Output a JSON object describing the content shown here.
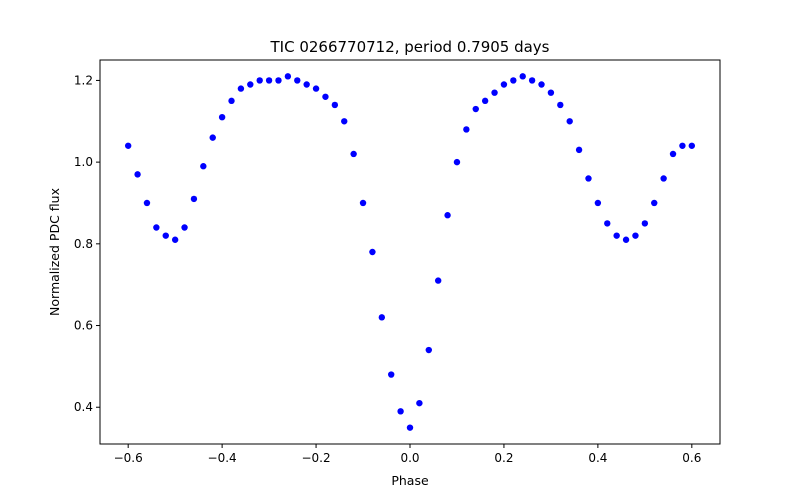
{
  "chart_data": {
    "type": "scatter",
    "title": "TIC 0266770712, period 0.7905 days",
    "xlabel": "Phase",
    "ylabel": "Normalized PDC flux",
    "xlim": [
      -0.66,
      0.66
    ],
    "ylim": [
      0.31,
      1.25
    ],
    "xticks": [
      -0.6,
      -0.4,
      -0.2,
      0.0,
      0.2,
      0.4,
      0.6
    ],
    "xtick_labels": [
      "−0.6",
      "−0.4",
      "−0.2",
      "0.0",
      "0.2",
      "0.4",
      "0.6"
    ],
    "yticks": [
      0.4,
      0.6,
      0.8,
      1.0,
      1.2
    ],
    "ytick_labels": [
      "0.4",
      "0.6",
      "0.8",
      "1.0",
      "1.2"
    ],
    "grid": false,
    "marker_color": "#0000ff",
    "series": [
      {
        "phase": [
          -0.6,
          -0.58,
          -0.56,
          -0.54,
          -0.52,
          -0.5,
          -0.48,
          -0.46,
          -0.44,
          -0.42,
          -0.4,
          -0.38,
          -0.36,
          -0.34,
          -0.32,
          -0.3,
          -0.28,
          -0.26,
          -0.24,
          -0.22,
          -0.2,
          -0.18,
          -0.16,
          -0.14,
          -0.12,
          -0.1,
          -0.08,
          -0.06,
          -0.04,
          -0.02,
          0.0,
          0.02,
          0.04,
          0.06,
          0.08,
          0.1,
          0.12,
          0.14,
          0.16,
          0.18,
          0.2,
          0.22,
          0.24,
          0.26,
          0.28,
          0.3,
          0.32,
          0.34,
          0.36,
          0.38,
          0.4,
          0.42,
          0.44,
          0.46,
          0.48,
          0.5,
          0.52,
          0.54,
          0.56,
          0.58,
          0.6
        ],
        "flux": [
          1.04,
          0.97,
          0.9,
          0.84,
          0.82,
          0.81,
          0.84,
          0.91,
          0.99,
          1.06,
          1.11,
          1.15,
          1.18,
          1.19,
          1.2,
          1.2,
          1.2,
          1.21,
          1.2,
          1.19,
          1.18,
          1.16,
          1.14,
          1.1,
          1.02,
          0.9,
          0.78,
          0.62,
          0.48,
          0.39,
          0.35,
          0.41,
          0.54,
          0.71,
          0.87,
          1.0,
          1.08,
          1.13,
          1.15,
          1.17,
          1.19,
          1.2,
          1.21,
          1.2,
          1.19,
          1.17,
          1.14,
          1.1,
          1.03,
          0.96,
          0.9,
          0.85,
          0.82,
          0.81,
          0.82,
          0.85,
          0.9,
          0.96,
          1.02,
          1.04,
          1.04
        ]
      }
    ]
  }
}
